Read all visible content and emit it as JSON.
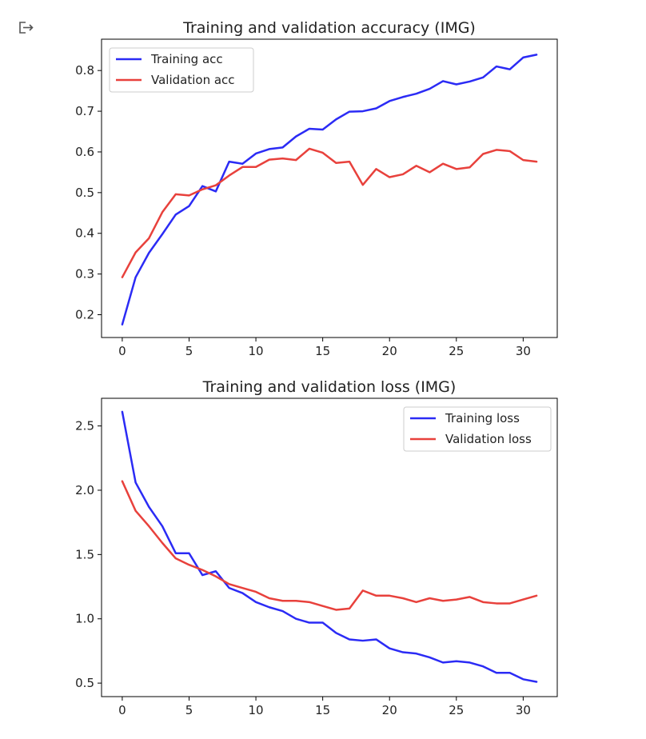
{
  "output_icon": "output-arrow-icon",
  "chart_data": [
    {
      "type": "line",
      "title": "Training and validation accuracy (IMG)",
      "xlabel": "",
      "ylabel": "",
      "xlim": [
        -1.55,
        32.55
      ],
      "ylim": [
        0.144,
        0.877
      ],
      "xticks": [
        0,
        5,
        10,
        15,
        20,
        25,
        30
      ],
      "yticks": [
        0.2,
        0.3,
        0.4,
        0.5,
        0.6,
        0.7,
        0.8
      ],
      "legend": "top-left",
      "x": [
        0,
        1,
        2,
        3,
        4,
        5,
        6,
        7,
        8,
        9,
        10,
        11,
        12,
        13,
        14,
        15,
        16,
        17,
        18,
        19,
        20,
        21,
        22,
        23,
        24,
        25,
        26,
        27,
        28,
        29,
        30,
        31
      ],
      "series": [
        {
          "name": "Training acc",
          "color": "#2b2bf5",
          "values": [
            0.176,
            0.292,
            0.352,
            0.398,
            0.446,
            0.467,
            0.516,
            0.503,
            0.576,
            0.571,
            0.596,
            0.607,
            0.611,
            0.638,
            0.657,
            0.655,
            0.68,
            0.699,
            0.7,
            0.707,
            0.725,
            0.735,
            0.743,
            0.755,
            0.774,
            0.766,
            0.773,
            0.783,
            0.81,
            0.803,
            0.832,
            0.839
          ]
        },
        {
          "name": "Validation acc",
          "color": "#e8413c",
          "values": [
            0.292,
            0.353,
            0.388,
            0.452,
            0.496,
            0.493,
            0.508,
            0.518,
            0.542,
            0.563,
            0.563,
            0.581,
            0.584,
            0.58,
            0.608,
            0.598,
            0.573,
            0.576,
            0.519,
            0.558,
            0.538,
            0.545,
            0.566,
            0.55,
            0.571,
            0.558,
            0.562,
            0.595,
            0.605,
            0.602,
            0.58,
            0.576
          ]
        }
      ]
    },
    {
      "type": "line",
      "title": "Training and validation loss (IMG)",
      "xlabel": "",
      "ylabel": "",
      "xlim": [
        -1.55,
        32.55
      ],
      "ylim": [
        0.395,
        2.715
      ],
      "xticks": [
        0,
        5,
        10,
        15,
        20,
        25,
        30
      ],
      "yticks": [
        0.5,
        1.0,
        1.5,
        2.0,
        2.5
      ],
      "ytick_labels": [
        "0.5",
        "1.0",
        "1.5",
        "2.0",
        "2.5"
      ],
      "legend": "top-right",
      "x": [
        0,
        1,
        2,
        3,
        4,
        5,
        6,
        7,
        8,
        9,
        10,
        11,
        12,
        13,
        14,
        15,
        16,
        17,
        18,
        19,
        20,
        21,
        22,
        23,
        24,
        25,
        26,
        27,
        28,
        29,
        30,
        31
      ],
      "series": [
        {
          "name": "Training loss",
          "color": "#2b2bf5",
          "values": [
            2.61,
            2.06,
            1.87,
            1.72,
            1.51,
            1.51,
            1.34,
            1.37,
            1.24,
            1.2,
            1.13,
            1.09,
            1.06,
            1.0,
            0.97,
            0.97,
            0.89,
            0.84,
            0.83,
            0.84,
            0.77,
            0.74,
            0.73,
            0.7,
            0.66,
            0.67,
            0.66,
            0.63,
            0.58,
            0.58,
            0.53,
            0.51
          ]
        },
        {
          "name": "Validation loss",
          "color": "#e8413c",
          "values": [
            2.07,
            1.84,
            1.72,
            1.59,
            1.47,
            1.42,
            1.38,
            1.33,
            1.27,
            1.24,
            1.21,
            1.16,
            1.14,
            1.14,
            1.13,
            1.1,
            1.07,
            1.08,
            1.22,
            1.18,
            1.18,
            1.16,
            1.13,
            1.16,
            1.14,
            1.15,
            1.17,
            1.13,
            1.12,
            1.12,
            1.15,
            1.18
          ]
        }
      ]
    }
  ]
}
